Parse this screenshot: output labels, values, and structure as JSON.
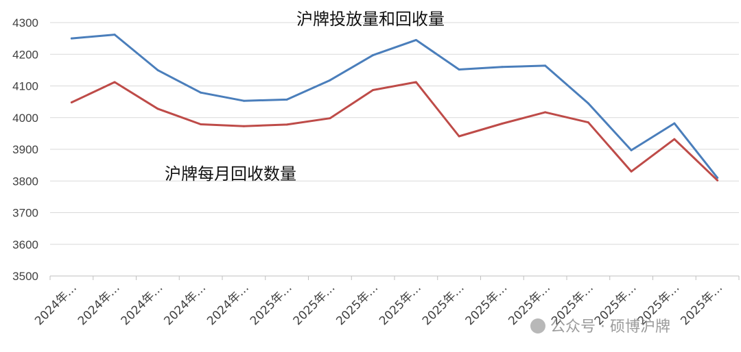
{
  "chart_data": {
    "type": "line",
    "title": "沪牌投放量和回收量",
    "annotation": "沪牌每月回收数量",
    "categories": [
      "2024年…",
      "2024年…",
      "2024年…",
      "2024年…",
      "2024年…",
      "2025年…",
      "2025年…",
      "2025年…",
      "2025年…",
      "2025年…",
      "2025年…",
      "2025年…",
      "2025年…",
      "2025年…",
      "2025年…",
      "2025年…"
    ],
    "ylim": [
      3500,
      4300
    ],
    "yticks": [
      3500,
      3600,
      3700,
      3800,
      3900,
      4000,
      4100,
      4200,
      4300
    ],
    "grid": true,
    "series": [
      {
        "values": [
          4250,
          4262,
          4150,
          4079,
          4053,
          4057,
          4118,
          4197,
          4245,
          4152,
          4160,
          4164,
          4045,
          3897,
          3982,
          3810
        ],
        "color": "#4a7ebb"
      },
      {
        "values": [
          4048,
          4112,
          4028,
          3979,
          3973,
          3978,
          3998,
          4087,
          4112,
          3941,
          3981,
          4017,
          3985,
          3830,
          3932,
          3802
        ],
        "color": "#be4b48"
      }
    ]
  },
  "watermark": "公众号 · 硕博沪牌"
}
